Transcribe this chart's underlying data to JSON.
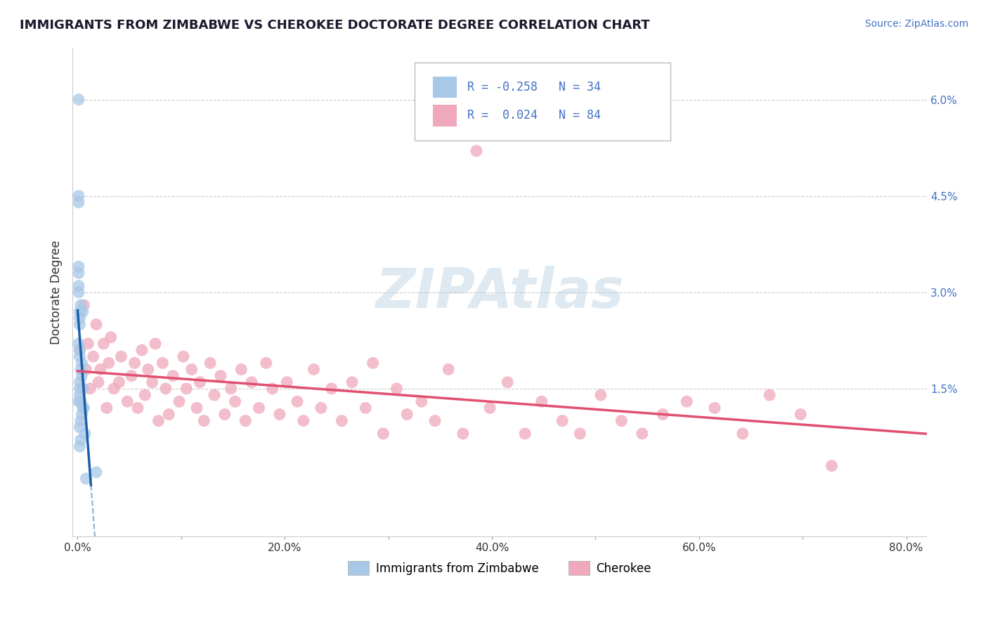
{
  "title": "IMMIGRANTS FROM ZIMBABWE VS CHEROKEE DOCTORATE DEGREE CORRELATION CHART",
  "source": "Source: ZipAtlas.com",
  "ylabel": "Doctorate Degree",
  "legend_label1": "Immigrants from Zimbabwe",
  "legend_label2": "Cherokee",
  "r1": -0.258,
  "n1": 34,
  "r2": 0.024,
  "n2": 84,
  "color1": "#a8c8e8",
  "color2": "#f0a8bc",
  "line_color1": "#1a5fa8",
  "line_color2": "#e05070",
  "xlim": [
    -0.005,
    0.82
  ],
  "ylim": [
    -0.008,
    0.068
  ],
  "yticks": [
    0.0,
    0.015,
    0.03,
    0.045,
    0.06
  ],
  "ytick_labels": [
    "",
    "1.5%",
    "3.0%",
    "4.5%",
    "6.0%"
  ],
  "xticks": [
    0.0,
    0.1,
    0.2,
    0.3,
    0.4,
    0.5,
    0.6,
    0.7,
    0.8
  ],
  "xtick_labels": [
    "0.0%",
    "",
    "20.0%",
    "",
    "40.0%",
    "",
    "60.0%",
    "",
    "80.0%"
  ],
  "watermark": "ZIPAtlas",
  "background_color": "#ffffff",
  "grid_color": "#cccccc",
  "title_color": "#1a1a2e",
  "blue_scatter_x": [
    0.001,
    0.001,
    0.001,
    0.001,
    0.001,
    0.001,
    0.001,
    0.001,
    0.001,
    0.002,
    0.002,
    0.002,
    0.002,
    0.002,
    0.002,
    0.002,
    0.002,
    0.002,
    0.002,
    0.003,
    0.003,
    0.003,
    0.003,
    0.003,
    0.004,
    0.004,
    0.004,
    0.005,
    0.005,
    0.005,
    0.006,
    0.007,
    0.008,
    0.018
  ],
  "blue_scatter_y": [
    0.06,
    0.045,
    0.044,
    0.034,
    0.033,
    0.031,
    0.03,
    0.022,
    0.013,
    0.027,
    0.026,
    0.025,
    0.021,
    0.02,
    0.016,
    0.015,
    0.014,
    0.009,
    0.006,
    0.028,
    0.018,
    0.013,
    0.01,
    0.007,
    0.019,
    0.017,
    0.011,
    0.027,
    0.015,
    0.012,
    0.012,
    0.008,
    0.001,
    0.002
  ],
  "pink_scatter_x": [
    0.002,
    0.006,
    0.008,
    0.01,
    0.012,
    0.015,
    0.018,
    0.02,
    0.022,
    0.025,
    0.028,
    0.03,
    0.032,
    0.035,
    0.04,
    0.042,
    0.048,
    0.052,
    0.055,
    0.058,
    0.062,
    0.065,
    0.068,
    0.072,
    0.075,
    0.078,
    0.082,
    0.085,
    0.088,
    0.092,
    0.098,
    0.102,
    0.105,
    0.11,
    0.115,
    0.118,
    0.122,
    0.128,
    0.132,
    0.138,
    0.142,
    0.148,
    0.152,
    0.158,
    0.162,
    0.168,
    0.175,
    0.182,
    0.188,
    0.195,
    0.202,
    0.212,
    0.218,
    0.228,
    0.235,
    0.245,
    0.255,
    0.265,
    0.278,
    0.285,
    0.295,
    0.308,
    0.318,
    0.332,
    0.345,
    0.358,
    0.372,
    0.385,
    0.398,
    0.415,
    0.432,
    0.448,
    0.468,
    0.485,
    0.505,
    0.525,
    0.545,
    0.565,
    0.588,
    0.615,
    0.642,
    0.668,
    0.698,
    0.728
  ],
  "pink_scatter_y": [
    0.021,
    0.028,
    0.018,
    0.022,
    0.015,
    0.02,
    0.025,
    0.016,
    0.018,
    0.022,
    0.012,
    0.019,
    0.023,
    0.015,
    0.016,
    0.02,
    0.013,
    0.017,
    0.019,
    0.012,
    0.021,
    0.014,
    0.018,
    0.016,
    0.022,
    0.01,
    0.019,
    0.015,
    0.011,
    0.017,
    0.013,
    0.02,
    0.015,
    0.018,
    0.012,
    0.016,
    0.01,
    0.019,
    0.014,
    0.017,
    0.011,
    0.015,
    0.013,
    0.018,
    0.01,
    0.016,
    0.012,
    0.019,
    0.015,
    0.011,
    0.016,
    0.013,
    0.01,
    0.018,
    0.012,
    0.015,
    0.01,
    0.016,
    0.012,
    0.019,
    0.008,
    0.015,
    0.011,
    0.013,
    0.01,
    0.018,
    0.008,
    0.052,
    0.012,
    0.016,
    0.008,
    0.013,
    0.01,
    0.008,
    0.014,
    0.01,
    0.008,
    0.011,
    0.013,
    0.012,
    0.008,
    0.014,
    0.011,
    0.003
  ]
}
